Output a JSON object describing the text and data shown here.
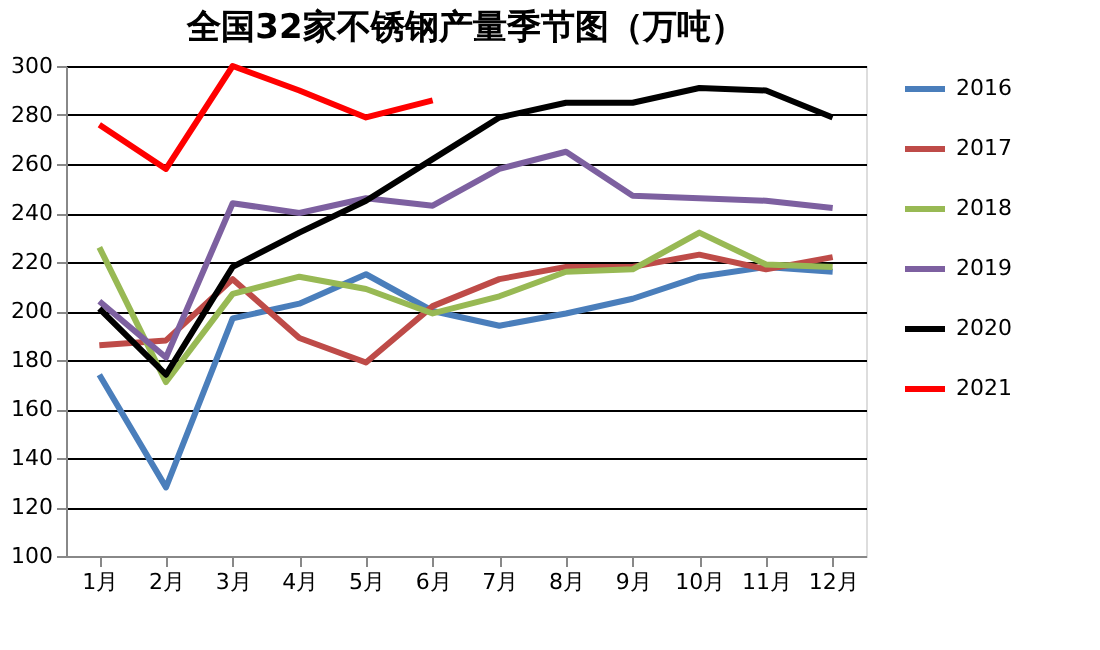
{
  "chart_data": {
    "type": "line",
    "title": "全国32家不锈钢产量季节图（万吨）",
    "categories": [
      "1月",
      "2月",
      "3月",
      "4月",
      "5月",
      "6月",
      "7月",
      "8月",
      "9月",
      "10月",
      "11月",
      "12月"
    ],
    "series": [
      {
        "name": "2016",
        "color": "#4a7ebb",
        "values": [
          174,
          128,
          197,
          203,
          215,
          200,
          194,
          199,
          205,
          214,
          218,
          216
        ]
      },
      {
        "name": "2017",
        "color": "#be4b48",
        "values": [
          186,
          188,
          213,
          189,
          179,
          202,
          213,
          218,
          218,
          223,
          217,
          222
        ]
      },
      {
        "name": "2018",
        "color": "#98b954",
        "values": [
          226,
          171,
          207,
          214,
          209,
          199,
          206,
          216,
          217,
          232,
          219,
          218
        ]
      },
      {
        "name": "2019",
        "color": "#7d60a0",
        "values": [
          204,
          181,
          244,
          240,
          246,
          243,
          258,
          265,
          247,
          246,
          245,
          242
        ]
      },
      {
        "name": "2020",
        "color": "#000000",
        "values": [
          201,
          174,
          218,
          232,
          245,
          262,
          279,
          285,
          285,
          291,
          290,
          279
        ]
      },
      {
        "name": "2021",
        "color": "#ff0000",
        "values": [
          276,
          258,
          300,
          290,
          279,
          286,
          null,
          null,
          null,
          null,
          null,
          null
        ]
      }
    ],
    "ylim": [
      100,
      300
    ],
    "yticks": [
      100,
      120,
      140,
      160,
      180,
      200,
      220,
      240,
      260,
      280,
      300
    ],
    "grid": "y",
    "legend": "right",
    "marker": "none",
    "line_style": "solid"
  }
}
